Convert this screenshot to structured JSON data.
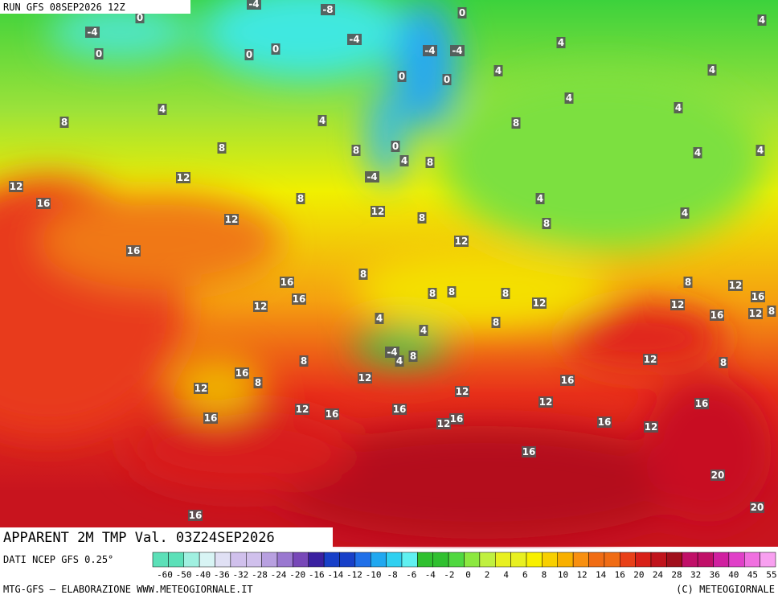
{
  "header": {
    "run": "RUN GFS 08SEP2026 12Z"
  },
  "title": "APPARENT 2M TMP Val. 03Z24SEP2026",
  "source": "DATI NCEP GFS 0.25°",
  "credit": "MTG-GFS — ELABORAZIONE WWW.METEOGIORNALE.IT",
  "copyright": "(C) METEOGIORNALE",
  "legend": {
    "labels": [
      -60,
      -50,
      -40,
      -36,
      -32,
      -28,
      -24,
      -20,
      -16,
      -14,
      -12,
      -10,
      -8,
      -6,
      -4,
      -2,
      0,
      2,
      4,
      6,
      8,
      10,
      12,
      14,
      16,
      20,
      24,
      28,
      32,
      36,
      40,
      45,
      55
    ]
  },
  "map_labels": [
    0,
    -4,
    0,
    -4,
    -8,
    0,
    -4,
    -4,
    -4,
    0,
    0,
    0,
    0,
    4,
    4,
    4,
    4,
    4,
    4,
    4,
    4,
    8,
    8,
    8,
    8,
    0,
    4,
    8,
    4,
    4,
    12,
    -4,
    12,
    16,
    8,
    4,
    12,
    8,
    4,
    12,
    8,
    12,
    16,
    8,
    16,
    8,
    12,
    16,
    12,
    8,
    8,
    8,
    12,
    12,
    16,
    12,
    8,
    16,
    4,
    8,
    4,
    -4,
    4,
    8,
    8,
    12,
    8,
    16,
    12,
    16,
    8,
    12,
    12,
    12,
    16,
    12,
    16,
    16,
    16,
    12,
    16,
    16,
    12,
    16,
    20,
    20,
    16
  ]
}
